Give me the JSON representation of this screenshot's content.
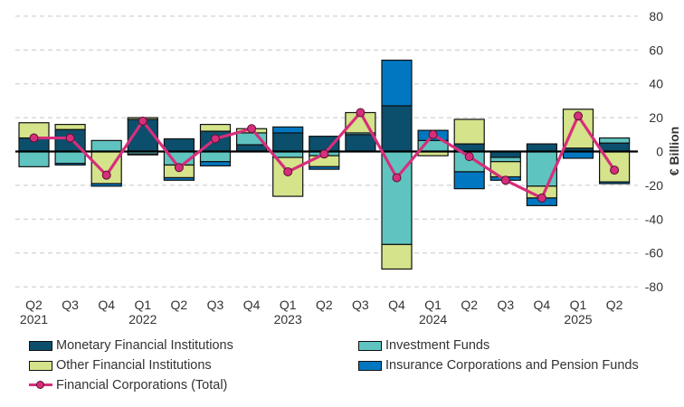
{
  "chart_data": {
    "type": "bar",
    "stacked": true,
    "categories": [
      "Q2",
      "Q3",
      "Q4",
      "Q1",
      "Q2",
      "Q3",
      "Q4",
      "Q1",
      "Q2",
      "Q3",
      "Q4",
      "Q1",
      "Q2",
      "Q3",
      "Q4",
      "Q1",
      "Q2"
    ],
    "years": {
      "0": "2021",
      "3": "2022",
      "7": "2023",
      "11": "2024",
      "15": "2025"
    },
    "ylabel": "€ Billion",
    "ylim": [
      -80,
      80
    ],
    "yticks": [
      80,
      60,
      40,
      20,
      0,
      -20,
      -40,
      -60,
      -80
    ],
    "grid": true,
    "y_axis_side": "right",
    "legend_position": "bottom",
    "series": [
      {
        "name": "Monetary Financial Institutions",
        "color": "#0b4f6c",
        "values": [
          8,
          13,
          0,
          19,
          7.5,
          12,
          4,
          11,
          9,
          10,
          27,
          0,
          4.5,
          -3.5,
          4.5,
          2,
          5
        ]
      },
      {
        "name": "Investment Funds",
        "color": "#5fc4c0",
        "values": [
          -9,
          -7,
          6.5,
          -1.5,
          -8,
          -6,
          7,
          -3.5,
          -2.5,
          1,
          -55,
          6.5,
          -12,
          -2.5,
          -20.5,
          0,
          3
        ]
      },
      {
        "name": "Other Financial Institutions",
        "color": "#d5e38a",
        "values": [
          9,
          3,
          -19,
          1,
          -7.5,
          4,
          2.5,
          -23,
          -6.5,
          12,
          -14.5,
          -2.5,
          14.5,
          -9,
          -7,
          23,
          -18
        ]
      },
      {
        "name": "Insurance Corporations and Pension Funds",
        "color": "#0077c0",
        "values": [
          0,
          -1,
          -1.5,
          -0.5,
          -1.5,
          -2.5,
          0,
          3.5,
          -1.5,
          0,
          27,
          6,
          -10,
          -2,
          -4.5,
          -4,
          -1
        ]
      }
    ],
    "line": {
      "name": "Financial Corporations (Total)",
      "color": "#d62e7b",
      "values": [
        8,
        8,
        -14,
        18,
        -9.5,
        7.5,
        13.5,
        -12,
        -1.5,
        23,
        -15.5,
        10,
        -3,
        -17,
        -27.5,
        21,
        -11
      ]
    }
  }
}
